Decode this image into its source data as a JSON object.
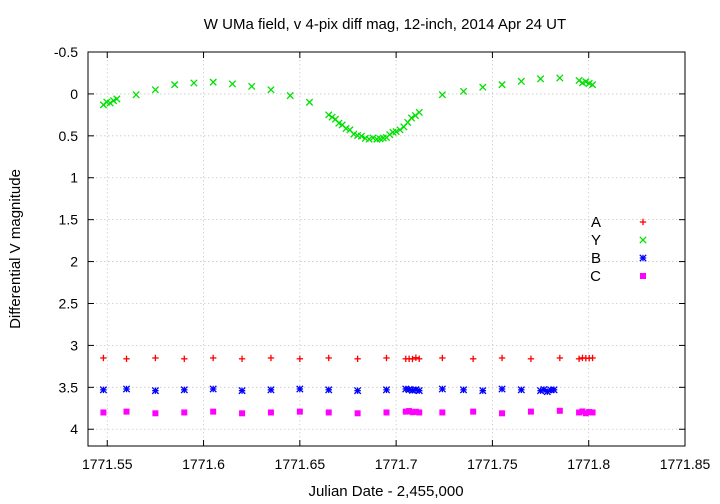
{
  "chart_data": {
    "type": "scatter",
    "title": "W UMa field, v 4-pix diff mag, 12-inch, 2014 Apr 24 UT",
    "xlabel": "Julian Date - 2,455,000",
    "ylabel": "Differential V magnitude",
    "xlim": [
      1771.54,
      1771.85
    ],
    "ylim": [
      -0.5,
      4.2
    ],
    "y_inverted": true,
    "grid": true,
    "legend_position": "right",
    "x_ticks": [
      {
        "value": 1771.55,
        "label": "1771.55"
      },
      {
        "value": 1771.6,
        "label": "1771.6"
      },
      {
        "value": 1771.65,
        "label": "1771.65"
      },
      {
        "value": 1771.7,
        "label": "1771.7"
      },
      {
        "value": 1771.75,
        "label": "1771.75"
      },
      {
        "value": 1771.8,
        "label": "1771.8"
      },
      {
        "value": 1771.85,
        "label": "1771.85"
      }
    ],
    "y_ticks": [
      {
        "value": -0.5,
        "label": "-0.5"
      },
      {
        "value": 0,
        "label": "0"
      },
      {
        "value": 0.5,
        "label": "0.5"
      },
      {
        "value": 1,
        "label": "1"
      },
      {
        "value": 1.5,
        "label": "1.5"
      },
      {
        "value": 2,
        "label": "2"
      },
      {
        "value": 2.5,
        "label": "2.5"
      },
      {
        "value": 3,
        "label": "3"
      },
      {
        "value": 3.5,
        "label": "3.5"
      },
      {
        "value": 4,
        "label": "4"
      }
    ],
    "series": [
      {
        "name": "A",
        "marker": "plus",
        "color": "#ff0000",
        "x": [
          1771.548,
          1771.56,
          1771.575,
          1771.59,
          1771.605,
          1771.62,
          1771.635,
          1771.65,
          1771.665,
          1771.68,
          1771.695,
          1771.705,
          1771.712,
          1771.724,
          1771.74,
          1771.755,
          1771.77,
          1771.785,
          1771.795,
          1771.802
        ],
        "y": [
          3.15,
          3.16,
          3.15,
          3.16,
          3.15,
          3.16,
          3.15,
          3.16,
          3.15,
          3.16,
          3.15,
          3.16,
          3.16,
          3.15,
          3.16,
          3.15,
          3.16,
          3.15,
          3.16,
          3.15
        ]
      },
      {
        "name": "Y",
        "marker": "cross",
        "color": "#00e000",
        "x": [
          1771.548,
          1771.555,
          1771.565,
          1771.575,
          1771.585,
          1771.595,
          1771.605,
          1771.615,
          1771.625,
          1771.635,
          1771.645,
          1771.655,
          1771.665,
          1771.672,
          1771.678,
          1771.684,
          1771.69,
          1771.695,
          1771.7,
          1771.706,
          1771.712,
          1771.724,
          1771.735,
          1771.745,
          1771.755,
          1771.765,
          1771.775,
          1771.785,
          1771.795,
          1771.802
        ],
        "y": [
          0.13,
          0.06,
          0.01,
          -0.05,
          -0.11,
          -0.13,
          -0.14,
          -0.12,
          -0.09,
          -0.05,
          0.02,
          0.1,
          0.25,
          0.37,
          0.48,
          0.53,
          0.54,
          0.52,
          0.45,
          0.34,
          0.22,
          0.01,
          -0.03,
          -0.08,
          -0.11,
          -0.15,
          -0.18,
          -0.19,
          -0.16,
          -0.11
        ]
      },
      {
        "name": "B",
        "marker": "star",
        "color": "#0000ff",
        "x": [
          1771.548,
          1771.56,
          1771.575,
          1771.59,
          1771.605,
          1771.62,
          1771.635,
          1771.65,
          1771.665,
          1771.68,
          1771.695,
          1771.705,
          1771.712,
          1771.724,
          1771.735,
          1771.745,
          1771.755,
          1771.765,
          1771.775,
          1771.782
        ],
        "y": [
          3.53,
          3.52,
          3.54,
          3.53,
          3.52,
          3.54,
          3.53,
          3.52,
          3.53,
          3.54,
          3.53,
          3.52,
          3.54,
          3.52,
          3.53,
          3.54,
          3.52,
          3.53,
          3.54,
          3.53
        ]
      },
      {
        "name": "C",
        "marker": "square",
        "color": "#ff00ff",
        "x": [
          1771.548,
          1771.56,
          1771.575,
          1771.59,
          1771.605,
          1771.62,
          1771.635,
          1771.65,
          1771.665,
          1771.68,
          1771.695,
          1771.705,
          1771.712,
          1771.724,
          1771.74,
          1771.755,
          1771.77,
          1771.785,
          1771.795,
          1771.802
        ],
        "y": [
          3.8,
          3.79,
          3.81,
          3.8,
          3.79,
          3.81,
          3.8,
          3.79,
          3.8,
          3.81,
          3.8,
          3.79,
          3.8,
          3.8,
          3.79,
          3.81,
          3.79,
          3.78,
          3.8,
          3.8
        ]
      }
    ]
  }
}
